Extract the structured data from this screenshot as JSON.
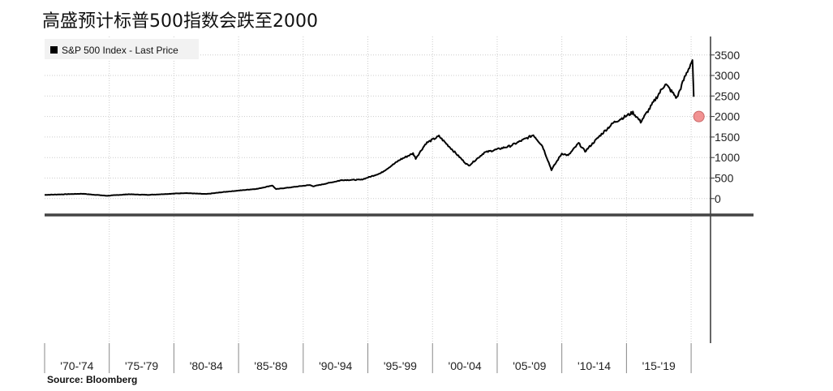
{
  "title": "高盛预计标普500指数会跌至2000",
  "source": "Source:  Bloomberg",
  "chart_data": {
    "type": "line",
    "legend": {
      "label": "S&P 500 Index - Last Price",
      "placement": "top-left",
      "swatch_color": "#000000"
    },
    "series": [
      {
        "name": "S&P 500 Index - Last Price",
        "color": "#000000",
        "points": [
          [
            1970.0,
            90
          ],
          [
            1972.9,
            118
          ],
          [
            1974.8,
            68
          ],
          [
            1976.5,
            105
          ],
          [
            1978.0,
            90
          ],
          [
            1980.9,
            135
          ],
          [
            1982.5,
            110
          ],
          [
            1984.0,
            165
          ],
          [
            1986.5,
            240
          ],
          [
            1987.6,
            320
          ],
          [
            1987.9,
            230
          ],
          [
            1990.5,
            330
          ],
          [
            1990.8,
            300
          ],
          [
            1993.0,
            450
          ],
          [
            1994.5,
            460
          ],
          [
            1996.0,
            620
          ],
          [
            1997.5,
            950
          ],
          [
            1998.5,
            1100
          ],
          [
            1998.7,
            980
          ],
          [
            1999.5,
            1350
          ],
          [
            2000.5,
            1520
          ],
          [
            2001.5,
            1200
          ],
          [
            2002.5,
            880
          ],
          [
            2002.8,
            800
          ],
          [
            2004.0,
            1120
          ],
          [
            2005.0,
            1200
          ],
          [
            2006.0,
            1280
          ],
          [
            2007.8,
            1550
          ],
          [
            2008.5,
            1280
          ],
          [
            2009.2,
            700
          ],
          [
            2010.0,
            1100
          ],
          [
            2010.5,
            1050
          ],
          [
            2011.3,
            1350
          ],
          [
            2011.8,
            1150
          ],
          [
            2013.0,
            1550
          ],
          [
            2014.0,
            1850
          ],
          [
            2015.5,
            2100
          ],
          [
            2016.1,
            1870
          ],
          [
            2016.8,
            2200
          ],
          [
            2018.0,
            2800
          ],
          [
            2018.9,
            2450
          ],
          [
            2019.5,
            2950
          ],
          [
            2020.1,
            3380
          ],
          [
            2020.2,
            2480
          ]
        ]
      }
    ],
    "marker": {
      "x": 2020.6,
      "y": 2000,
      "color": "#f08080"
    },
    "xlim": [
      1970,
      2021.5
    ],
    "ylim": [
      -380,
      3950
    ],
    "y_ticks": [
      0,
      500,
      1000,
      1500,
      2000,
      2500,
      3000,
      3500
    ],
    "y_tick_labels": [
      "0",
      "500",
      "1000",
      "1500",
      "2000",
      "2500",
      "3000",
      "3500"
    ],
    "x_bins": [
      {
        "label": "'70-'74",
        "start": 1970,
        "end": 1975
      },
      {
        "label": "'75-'79",
        "start": 1975,
        "end": 1980
      },
      {
        "label": "'80-'84",
        "start": 1980,
        "end": 1985
      },
      {
        "label": "'85-'89",
        "start": 1985,
        "end": 1990
      },
      {
        "label": "'90-'94",
        "start": 1990,
        "end": 1995
      },
      {
        "label": "'95-'99",
        "start": 1995,
        "end": 2000
      },
      {
        "label": "'00-'04",
        "start": 2000,
        "end": 2005
      },
      {
        "label": "'05-'09",
        "start": 2005,
        "end": 2010
      },
      {
        "label": "'10-'14",
        "start": 2010,
        "end": 2015
      },
      {
        "label": "'15-'19",
        "start": 2015,
        "end": 2020
      }
    ],
    "grid": true,
    "y_axis_position": "right",
    "colors": {
      "grid": "#cccccc",
      "axis": "#333333",
      "divider": "#444444"
    }
  }
}
